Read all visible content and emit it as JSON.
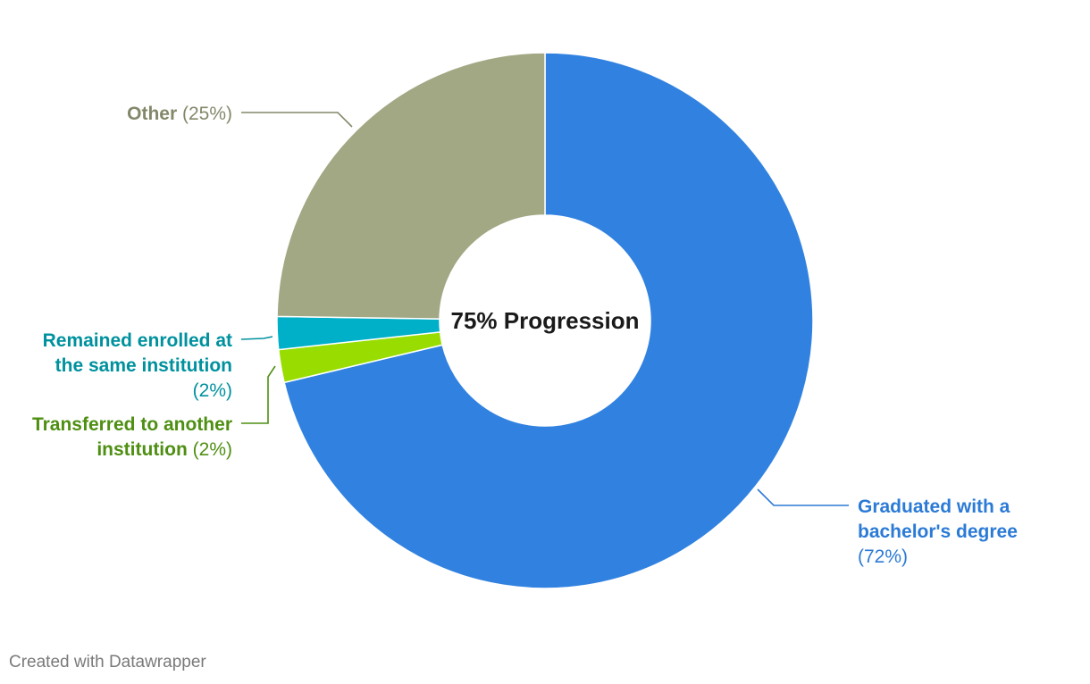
{
  "chart_data": {
    "type": "pie",
    "variant": "donut",
    "center_label": "75% Progression",
    "slices": [
      {
        "label": "Graduated with a bachelor's degree",
        "label_lines": [
          "Graduated with a",
          "bachelor's degree"
        ],
        "pct_text": "(72%)",
        "value": 72,
        "color": "#3182e0",
        "label_color": "#2b7ad6"
      },
      {
        "label": "Transferred to another institution",
        "label_lines": [
          "Transferred to another",
          "institution"
        ],
        "pct_text": "(2%)",
        "value": 2,
        "color": "#99dd00",
        "label_color": "#4e8f12"
      },
      {
        "label": "Remained enrolled at the same institution",
        "label_lines": [
          "Remained enrolled at",
          "the same institution"
        ],
        "pct_text": "(2%)",
        "value": 2,
        "color": "#00b0c8",
        "label_color": "#00919e"
      },
      {
        "label": "Other",
        "label_lines": [
          "Other"
        ],
        "pct_text": "(25%)",
        "value": 25,
        "color": "#a1a883",
        "label_color": "#84886a"
      }
    ]
  },
  "footer": "Created with Datawrapper"
}
